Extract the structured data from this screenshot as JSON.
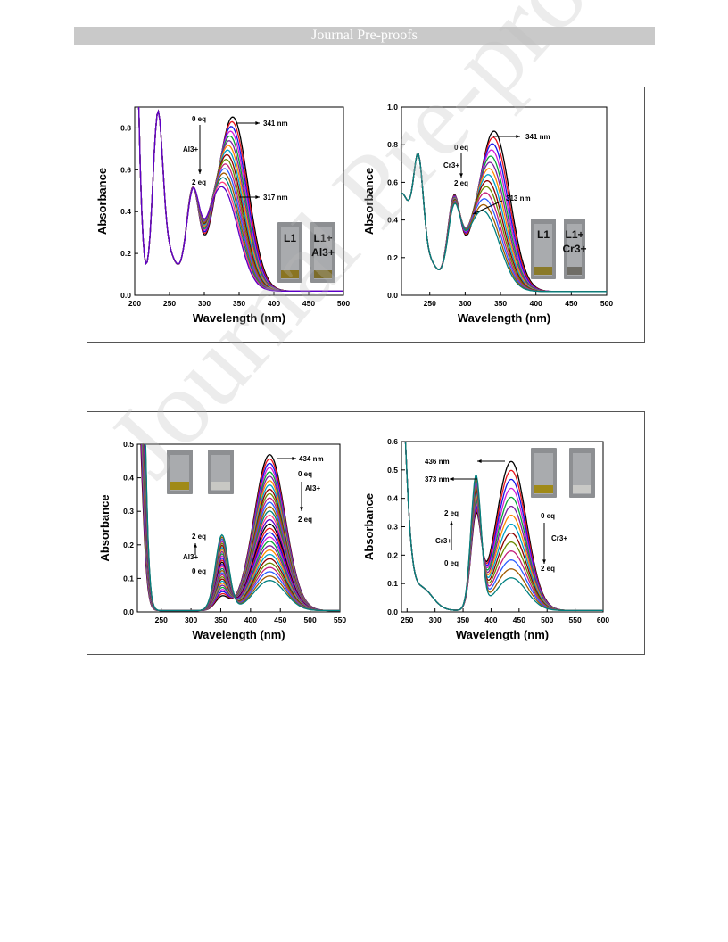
{
  "header": {
    "title": "Journal Pre-proofs"
  },
  "watermark": "Journal Pre-proofs",
  "colors": {
    "header_bg": "#c9c9c9",
    "series": [
      "#000000",
      "#e8141b",
      "#1414e8",
      "#d21ad8",
      "#0aa33a",
      "#7d1fa0",
      "#ff8a00",
      "#00a0c8",
      "#8b0000",
      "#6a8a00",
      "#c41f7a",
      "#2b5cff",
      "#a05a00",
      "#008080",
      "#ff4080",
      "#5a00c8"
    ]
  },
  "chart_data": [
    {
      "type": "line",
      "xlabel": "Wavelength (nm)",
      "ylabel": "Absorbance",
      "xlim": [
        200,
        500
      ],
      "ylim": [
        0,
        0.9
      ],
      "xticks": [
        200,
        250,
        300,
        350,
        400,
        450,
        500
      ],
      "yticks": [
        0.0,
        0.2,
        0.4,
        0.6,
        0.8
      ],
      "ytick_labels": [
        "0.0",
        "0.2",
        "0.4",
        "0.6",
        "0.8"
      ],
      "annotations": {
        "peak_high": "341 nm",
        "peak_low": "317 nm",
        "eq_start": "0 eq",
        "eq_end": "2 eq",
        "ion": "Al3+"
      },
      "vials": [
        {
          "label": "L1"
        },
        {
          "label": "L1+ Al3+"
        }
      ],
      "series_count": 16,
      "peak_start": 0.83,
      "peak_end": 0.48,
      "shoulder_start": 0.45,
      "shoulder_end": 0.4,
      "band_200_230": 0.72,
      "note_label": "Al3+"
    },
    {
      "type": "line",
      "xlabel": "Wavelength (nm)",
      "ylabel": "Absorbance",
      "xlim": [
        210,
        500
      ],
      "ylim": [
        0,
        1.0
      ],
      "xticks": [
        250,
        300,
        350,
        400,
        450,
        500
      ],
      "yticks": [
        0.0,
        0.2,
        0.4,
        0.6,
        0.8,
        1.0
      ],
      "ytick_labels": [
        "0.0",
        "0.2",
        "0.4",
        "0.6",
        "0.8",
        "1.0"
      ],
      "annotations": {
        "peak_high": "341 nm",
        "peak_low": "313 nm",
        "eq_start": "0 eq",
        "eq_end": "2 eq",
        "ion": "Cr3+"
      },
      "vials": [
        {
          "label": "L1"
        },
        {
          "label": "L1+ Cr3+"
        }
      ],
      "series_count": 14,
      "peak_start": 0.85,
      "peak_end": 0.41,
      "shoulder_start": 0.46,
      "shoulder_end": 0.38
    },
    {
      "type": "line",
      "xlabel": "Wavelength (nm)",
      "ylabel": "Absorbance",
      "xlim": [
        210,
        550
      ],
      "ylim": [
        0,
        0.5
      ],
      "xticks": [
        250,
        300,
        350,
        400,
        450,
        500,
        550
      ],
      "yticks": [
        0.0,
        0.1,
        0.2,
        0.3,
        0.4,
        0.5
      ],
      "ytick_labels": [
        "0.0",
        "0.1",
        "0.2",
        "0.3",
        "0.4",
        "0.5"
      ],
      "annotations": {
        "peak_high": "434 nm",
        "eq_top_start": "0 eq",
        "eq_top_end": "2 eq",
        "eq_bottom_start": "0 eq",
        "eq_bottom_end": "2 eq",
        "ion": "Al3+"
      },
      "series_count": 30,
      "peak434_start": 0.465,
      "peak434_end": 0.09,
      "peak350_start": 0.04,
      "peak350_end": 0.225
    },
    {
      "type": "line",
      "xlabel": "Wavelength (nm)",
      "ylabel": "Absorbance",
      "xlim": [
        240,
        600
      ],
      "ylim": [
        0,
        0.6
      ],
      "xticks": [
        250,
        300,
        350,
        400,
        450,
        500,
        550,
        600
      ],
      "yticks": [
        0.0,
        0.1,
        0.2,
        0.3,
        0.4,
        0.5,
        0.6
      ],
      "ytick_labels": [
        "0.0",
        "0.1",
        "0.2",
        "0.3",
        "0.4",
        "0.5",
        "0.6"
      ],
      "annotations": {
        "peak_high": "436 nm",
        "peak_low": "373 nm",
        "eq_top_start": "0 eq",
        "eq_top_end": "2 eq",
        "eq_right_start": "0 eq",
        "eq_right_end": "2 eq",
        "ion": "Cr3+"
      },
      "series_count": 14,
      "peak436_start": 0.525,
      "peak436_end": 0.115,
      "peak373_start": 0.31,
      "peak373_end": 0.47
    }
  ]
}
